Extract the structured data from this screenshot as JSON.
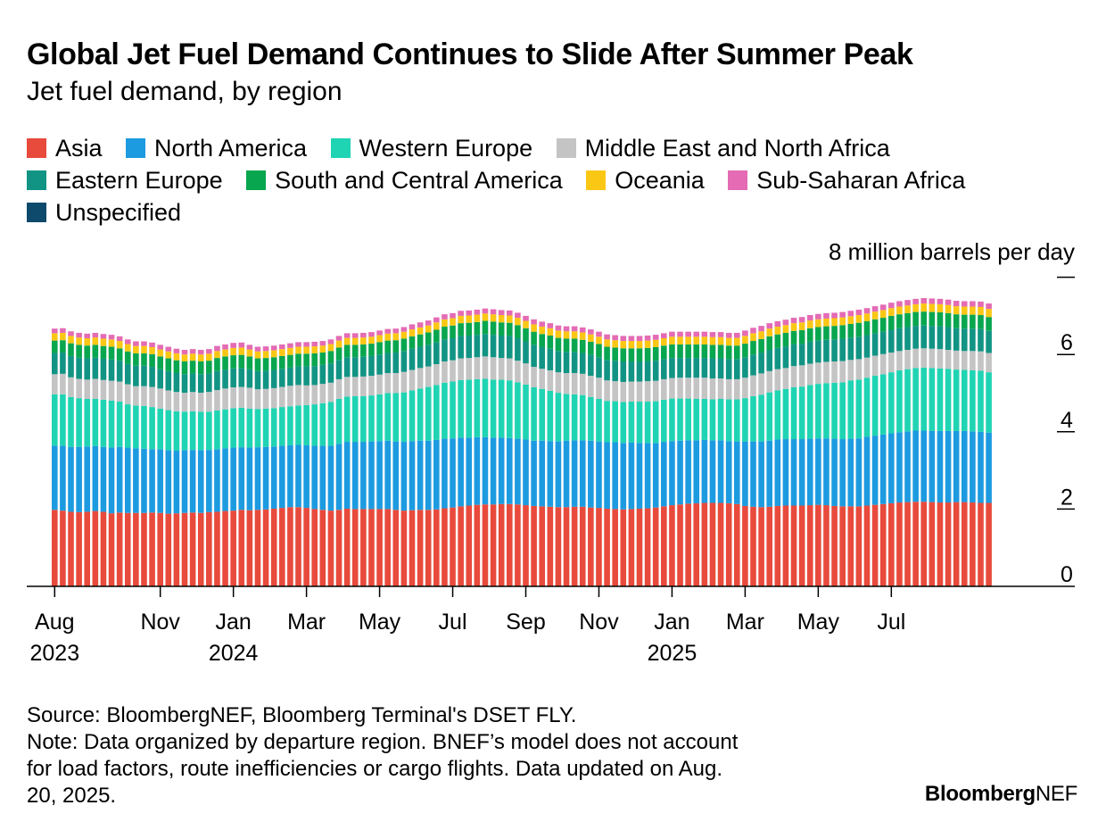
{
  "header": {
    "title": "Global Jet Fuel Demand Continues to Slide After Summer Peak",
    "subtitle": "Jet fuel demand, by region"
  },
  "legend": [
    {
      "label": "Asia",
      "color": "#e84a3c"
    },
    {
      "label": "North America",
      "color": "#1d9be0"
    },
    {
      "label": "Western Europe",
      "color": "#1fd4b3"
    },
    {
      "label": "Middle East and North Africa",
      "color": "#c4c4c4"
    },
    {
      "label": "Eastern Europe",
      "color": "#119484"
    },
    {
      "label": "South and Central America",
      "color": "#07a64f"
    },
    {
      "label": "Oceania",
      "color": "#fbc715"
    },
    {
      "label": "Sub-Saharan Africa",
      "color": "#e46bb4"
    },
    {
      "label": "Unspecified",
      "color": "#0d4a6b"
    }
  ],
  "chart_data": {
    "type": "bar",
    "stacked": true,
    "unit_label": "8 million barrels per day",
    "ylim": [
      0,
      8
    ],
    "y_ticks": [
      "0",
      "2",
      "4",
      "6"
    ],
    "x_ticks": [
      {
        "month": "Aug",
        "year": "2023",
        "index": 0
      },
      {
        "month": "Nov",
        "year": "",
        "index": 13
      },
      {
        "month": "Jan",
        "year": "2024",
        "index": 22
      },
      {
        "month": "Mar",
        "year": "",
        "index": 31
      },
      {
        "month": "May",
        "year": "",
        "index": 40
      },
      {
        "month": "Jul",
        "year": "",
        "index": 49
      },
      {
        "month": "Sep",
        "year": "",
        "index": 58
      },
      {
        "month": "Nov",
        "year": "",
        "index": 67
      },
      {
        "month": "Jan",
        "year": "2025",
        "index": 76
      },
      {
        "month": "Mar",
        "year": "",
        "index": 85
      },
      {
        "month": "May",
        "year": "",
        "index": 94
      },
      {
        "month": "Jul",
        "year": "",
        "index": 103
      }
    ],
    "series": [
      {
        "name": "Asia",
        "color": "#e84a3c",
        "values": [
          1.98,
          1.96,
          1.93,
          1.92,
          1.93,
          1.95,
          1.93,
          1.89,
          1.91,
          1.9,
          1.9,
          1.9,
          1.91,
          1.9,
          1.88,
          1.89,
          1.9,
          1.91,
          1.9,
          1.92,
          1.93,
          1.95,
          1.96,
          1.98,
          1.97,
          1.98,
          1.99,
          2.01,
          2.03,
          2.05,
          2.05,
          2.03,
          2.0,
          1.98,
          1.96,
          1.98,
          2.01,
          2.0,
          2.0,
          2.0,
          2.0,
          2.0,
          1.98,
          1.96,
          1.97,
          1.98,
          1.98,
          1.99,
          2.02,
          2.04,
          2.07,
          2.09,
          2.11,
          2.12,
          2.12,
          2.13,
          2.13,
          2.12,
          2.1,
          2.08,
          2.07,
          2.06,
          2.05,
          2.05,
          2.06,
          2.06,
          2.04,
          2.03,
          2.01,
          2.0,
          1.99,
          2.0,
          2.01,
          2.02,
          2.04,
          2.07,
          2.1,
          2.12,
          2.14,
          2.15,
          2.16,
          2.16,
          2.16,
          2.15,
          2.13,
          2.08,
          2.06,
          2.05,
          2.06,
          2.08,
          2.09,
          2.09,
          2.09,
          2.1,
          2.11,
          2.1,
          2.08,
          2.07,
          2.07,
          2.07,
          2.09,
          2.11,
          2.13,
          2.15,
          2.17,
          2.18,
          2.19,
          2.19,
          2.18,
          2.17,
          2.17,
          2.18,
          2.18,
          2.17,
          2.16,
          2.16
        ]
      },
      {
        "name": "North America",
        "color": "#1d9be0",
        "values": [
          1.66,
          1.68,
          1.68,
          1.69,
          1.69,
          1.68,
          1.68,
          1.7,
          1.7,
          1.69,
          1.67,
          1.66,
          1.64,
          1.65,
          1.64,
          1.62,
          1.62,
          1.62,
          1.62,
          1.61,
          1.62,
          1.62,
          1.63,
          1.62,
          1.62,
          1.62,
          1.62,
          1.61,
          1.61,
          1.6,
          1.61,
          1.62,
          1.64,
          1.66,
          1.68,
          1.71,
          1.73,
          1.74,
          1.74,
          1.75,
          1.76,
          1.77,
          1.77,
          1.78,
          1.79,
          1.79,
          1.79,
          1.8,
          1.8,
          1.79,
          1.78,
          1.76,
          1.75,
          1.74,
          1.73,
          1.72,
          1.71,
          1.7,
          1.7,
          1.69,
          1.7,
          1.7,
          1.7,
          1.72,
          1.72,
          1.72,
          1.73,
          1.72,
          1.72,
          1.73,
          1.72,
          1.72,
          1.7,
          1.69,
          1.67,
          1.67,
          1.66,
          1.65,
          1.64,
          1.63,
          1.63,
          1.62,
          1.62,
          1.61,
          1.62,
          1.67,
          1.69,
          1.7,
          1.71,
          1.72,
          1.72,
          1.72,
          1.72,
          1.72,
          1.72,
          1.73,
          1.74,
          1.74,
          1.75,
          1.76,
          1.78,
          1.79,
          1.8,
          1.81,
          1.82,
          1.83,
          1.84,
          1.84,
          1.84,
          1.85,
          1.85,
          1.84,
          1.84,
          1.84,
          1.84,
          1.82
        ]
      },
      {
        "name": "Western Europe",
        "color": "#1fd4b3",
        "values": [
          1.33,
          1.33,
          1.29,
          1.26,
          1.23,
          1.22,
          1.22,
          1.22,
          1.17,
          1.12,
          1.11,
          1.11,
          1.09,
          1.05,
          1.04,
          1.02,
          1.0,
          1.0,
          1.0,
          0.99,
          1.0,
          1.01,
          1.02,
          1.02,
          1.01,
          0.99,
          0.99,
          0.99,
          1.0,
          1.01,
          1.02,
          1.04,
          1.07,
          1.1,
          1.13,
          1.16,
          1.17,
          1.18,
          1.18,
          1.19,
          1.21,
          1.23,
          1.25,
          1.28,
          1.31,
          1.35,
          1.39,
          1.42,
          1.45,
          1.47,
          1.49,
          1.5,
          1.5,
          1.51,
          1.5,
          1.5,
          1.49,
          1.46,
          1.42,
          1.38,
          1.34,
          1.3,
          1.26,
          1.21,
          1.19,
          1.17,
          1.13,
          1.1,
          1.07,
          1.06,
          1.06,
          1.06,
          1.07,
          1.07,
          1.08,
          1.09,
          1.1,
          1.09,
          1.08,
          1.07,
          1.06,
          1.06,
          1.07,
          1.08,
          1.09,
          1.12,
          1.17,
          1.21,
          1.25,
          1.27,
          1.3,
          1.34,
          1.36,
          1.39,
          1.41,
          1.43,
          1.45,
          1.47,
          1.51,
          1.52,
          1.53,
          1.55,
          1.56,
          1.58,
          1.6,
          1.61,
          1.62,
          1.63,
          1.63,
          1.62,
          1.61,
          1.59,
          1.58,
          1.58,
          1.58,
          1.56
        ]
      },
      {
        "name": "Middle East and North Africa",
        "color": "#c4c4c4",
        "values": [
          0.52,
          0.53,
          0.51,
          0.5,
          0.5,
          0.52,
          0.51,
          0.51,
          0.52,
          0.52,
          0.5,
          0.51,
          0.52,
          0.52,
          0.51,
          0.5,
          0.49,
          0.5,
          0.49,
          0.51,
          0.53,
          0.54,
          0.54,
          0.54,
          0.54,
          0.51,
          0.51,
          0.52,
          0.52,
          0.53,
          0.53,
          0.51,
          0.5,
          0.5,
          0.5,
          0.51,
          0.51,
          0.5,
          0.51,
          0.51,
          0.51,
          0.52,
          0.52,
          0.53,
          0.53,
          0.53,
          0.53,
          0.54,
          0.55,
          0.55,
          0.56,
          0.56,
          0.57,
          0.58,
          0.58,
          0.56,
          0.57,
          0.56,
          0.55,
          0.53,
          0.52,
          0.53,
          0.53,
          0.54,
          0.55,
          0.55,
          0.55,
          0.55,
          0.53,
          0.52,
          0.52,
          0.52,
          0.52,
          0.53,
          0.53,
          0.53,
          0.53,
          0.54,
          0.54,
          0.55,
          0.55,
          0.54,
          0.53,
          0.52,
          0.52,
          0.53,
          0.54,
          0.55,
          0.55,
          0.55,
          0.54,
          0.55,
          0.55,
          0.55,
          0.55,
          0.55,
          0.55,
          0.55,
          0.53,
          0.53,
          0.52,
          0.52,
          0.52,
          0.51,
          0.5,
          0.5,
          0.5,
          0.5,
          0.5,
          0.5,
          0.49,
          0.49,
          0.49,
          0.5,
          0.5,
          0.5
        ]
      },
      {
        "name": "Eastern Europe",
        "color": "#119484",
        "values": [
          0.55,
          0.55,
          0.55,
          0.55,
          0.55,
          0.55,
          0.55,
          0.55,
          0.54,
          0.53,
          0.53,
          0.53,
          0.52,
          0.5,
          0.5,
          0.49,
          0.48,
          0.48,
          0.48,
          0.48,
          0.49,
          0.49,
          0.49,
          0.49,
          0.48,
          0.47,
          0.47,
          0.47,
          0.47,
          0.47,
          0.48,
          0.49,
          0.49,
          0.49,
          0.5,
          0.5,
          0.51,
          0.51,
          0.51,
          0.51,
          0.52,
          0.52,
          0.53,
          0.54,
          0.55,
          0.55,
          0.56,
          0.56,
          0.57,
          0.57,
          0.58,
          0.58,
          0.58,
          0.58,
          0.58,
          0.58,
          0.58,
          0.58,
          0.57,
          0.57,
          0.56,
          0.56,
          0.55,
          0.55,
          0.55,
          0.54,
          0.54,
          0.53,
          0.53,
          0.53,
          0.53,
          0.52,
          0.52,
          0.52,
          0.52,
          0.52,
          0.52,
          0.51,
          0.51,
          0.51,
          0.51,
          0.52,
          0.52,
          0.52,
          0.52,
          0.53,
          0.54,
          0.54,
          0.55,
          0.55,
          0.56,
          0.56,
          0.56,
          0.57,
          0.57,
          0.57,
          0.57,
          0.58,
          0.58,
          0.58,
          0.58,
          0.58,
          0.58,
          0.59,
          0.59,
          0.59,
          0.59,
          0.59,
          0.59,
          0.59,
          0.59,
          0.58,
          0.58,
          0.58,
          0.58,
          0.57
        ]
      },
      {
        "name": "South and Central America",
        "color": "#07a64f",
        "values": [
          0.32,
          0.32,
          0.33,
          0.33,
          0.33,
          0.33,
          0.33,
          0.33,
          0.32,
          0.32,
          0.32,
          0.32,
          0.33,
          0.33,
          0.33,
          0.33,
          0.33,
          0.33,
          0.33,
          0.33,
          0.34,
          0.34,
          0.34,
          0.34,
          0.33,
          0.33,
          0.33,
          0.33,
          0.33,
          0.33,
          0.33,
          0.33,
          0.33,
          0.32,
          0.32,
          0.32,
          0.32,
          0.32,
          0.32,
          0.32,
          0.32,
          0.32,
          0.32,
          0.32,
          0.32,
          0.32,
          0.32,
          0.33,
          0.33,
          0.33,
          0.33,
          0.33,
          0.33,
          0.34,
          0.34,
          0.34,
          0.34,
          0.34,
          0.34,
          0.34,
          0.34,
          0.34,
          0.34,
          0.34,
          0.34,
          0.34,
          0.34,
          0.34,
          0.34,
          0.34,
          0.34,
          0.34,
          0.34,
          0.34,
          0.35,
          0.35,
          0.35,
          0.35,
          0.35,
          0.35,
          0.35,
          0.35,
          0.35,
          0.35,
          0.35,
          0.35,
          0.35,
          0.35,
          0.35,
          0.35,
          0.35,
          0.35,
          0.35,
          0.35,
          0.35,
          0.35,
          0.35,
          0.35,
          0.35,
          0.36,
          0.36,
          0.36,
          0.36,
          0.36,
          0.36,
          0.36,
          0.36,
          0.36,
          0.36,
          0.36,
          0.36,
          0.36,
          0.36,
          0.36,
          0.36,
          0.36
        ]
      },
      {
        "name": "Oceania",
        "color": "#fbc715",
        "values": [
          0.19,
          0.19,
          0.19,
          0.19,
          0.19,
          0.19,
          0.19,
          0.19,
          0.19,
          0.19,
          0.19,
          0.19,
          0.18,
          0.18,
          0.18,
          0.18,
          0.18,
          0.18,
          0.18,
          0.18,
          0.18,
          0.18,
          0.19,
          0.19,
          0.18,
          0.18,
          0.18,
          0.18,
          0.18,
          0.18,
          0.18,
          0.18,
          0.18,
          0.18,
          0.18,
          0.18,
          0.18,
          0.18,
          0.18,
          0.18,
          0.18,
          0.18,
          0.18,
          0.18,
          0.18,
          0.18,
          0.18,
          0.19,
          0.19,
          0.19,
          0.19,
          0.19,
          0.19,
          0.19,
          0.19,
          0.19,
          0.19,
          0.19,
          0.19,
          0.19,
          0.19,
          0.19,
          0.19,
          0.19,
          0.19,
          0.19,
          0.19,
          0.19,
          0.19,
          0.19,
          0.19,
          0.19,
          0.19,
          0.19,
          0.19,
          0.19,
          0.2,
          0.2,
          0.2,
          0.2,
          0.2,
          0.2,
          0.2,
          0.2,
          0.2,
          0.2,
          0.2,
          0.2,
          0.2,
          0.2,
          0.2,
          0.2,
          0.2,
          0.2,
          0.2,
          0.2,
          0.2,
          0.2,
          0.2,
          0.2,
          0.2,
          0.2,
          0.2,
          0.2,
          0.2,
          0.2,
          0.2,
          0.21,
          0.21,
          0.21,
          0.21,
          0.21,
          0.21,
          0.21,
          0.21,
          0.21
        ]
      },
      {
        "name": "Sub-Saharan Africa",
        "color": "#e46bb4",
        "values": [
          0.12,
          0.12,
          0.12,
          0.12,
          0.12,
          0.12,
          0.12,
          0.12,
          0.12,
          0.12,
          0.12,
          0.12,
          0.12,
          0.12,
          0.12,
          0.12,
          0.12,
          0.12,
          0.12,
          0.12,
          0.13,
          0.13,
          0.13,
          0.13,
          0.12,
          0.12,
          0.12,
          0.12,
          0.12,
          0.12,
          0.12,
          0.12,
          0.12,
          0.12,
          0.12,
          0.12,
          0.12,
          0.12,
          0.12,
          0.12,
          0.12,
          0.12,
          0.12,
          0.12,
          0.13,
          0.13,
          0.13,
          0.13,
          0.13,
          0.13,
          0.13,
          0.13,
          0.13,
          0.13,
          0.13,
          0.13,
          0.13,
          0.13,
          0.13,
          0.13,
          0.13,
          0.13,
          0.13,
          0.13,
          0.13,
          0.13,
          0.13,
          0.13,
          0.13,
          0.13,
          0.13,
          0.13,
          0.13,
          0.13,
          0.13,
          0.13,
          0.13,
          0.13,
          0.13,
          0.13,
          0.13,
          0.13,
          0.13,
          0.13,
          0.13,
          0.14,
          0.14,
          0.14,
          0.14,
          0.14,
          0.14,
          0.14,
          0.14,
          0.14,
          0.14,
          0.14,
          0.14,
          0.14,
          0.14,
          0.14,
          0.14,
          0.14,
          0.14,
          0.14,
          0.14,
          0.14,
          0.14,
          0.14,
          0.14,
          0.14,
          0.14,
          0.14,
          0.14,
          0.14,
          0.14,
          0.14
        ]
      },
      {
        "name": "Unspecified",
        "color": "#0d4a6b",
        "values": [
          0,
          0,
          0,
          0,
          0,
          0,
          0,
          0,
          0,
          0,
          0,
          0,
          0,
          0,
          0,
          0,
          0,
          0,
          0,
          0,
          0,
          0,
          0,
          0,
          0,
          0,
          0,
          0,
          0,
          0,
          0,
          0,
          0,
          0,
          0,
          0,
          0,
          0,
          0,
          0,
          0,
          0,
          0,
          0,
          0,
          0,
          0,
          0,
          0,
          0,
          0,
          0,
          0,
          0,
          0,
          0,
          0,
          0,
          0,
          0,
          0,
          0,
          0,
          0,
          0,
          0,
          0,
          0,
          0,
          0,
          0,
          0,
          0,
          0,
          0,
          0,
          0,
          0,
          0,
          0,
          0,
          0,
          0,
          0,
          0,
          0,
          0,
          0,
          0,
          0,
          0,
          0,
          0,
          0,
          0,
          0,
          0,
          0,
          0,
          0,
          0,
          0,
          0,
          0,
          0,
          0,
          0,
          0,
          0,
          0,
          0,
          0,
          0,
          0,
          0,
          0
        ]
      }
    ]
  },
  "footer": {
    "source": "Source: BloombergNEF, Bloomberg Terminal's DSET FLY.",
    "note": "Note: Data organized by departure region. BNEF’s model does not account\nfor load factors, route inefficiencies or cargo flights. Data updated on Aug.\n20, 2025."
  },
  "brand": {
    "bold": "Bloomberg",
    "light": "NEF"
  }
}
